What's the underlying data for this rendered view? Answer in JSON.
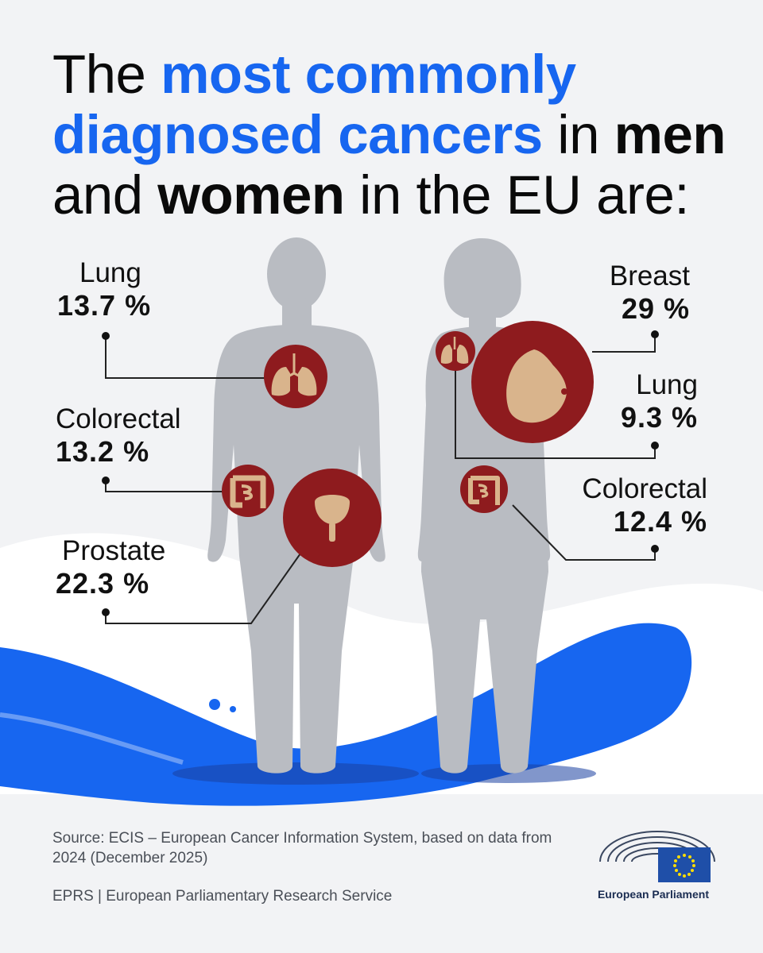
{
  "title": {
    "prefix": "The ",
    "highlight": "most commonly diagnosed cancers",
    "mid1": " in ",
    "men": "men",
    "mid2": " and ",
    "women": "women",
    "suffix": " in the EU are:"
  },
  "men": {
    "lung": {
      "name": "Lung",
      "value": "13.7 %"
    },
    "colorectal": {
      "name": "Colorectal",
      "value": "13.2 %"
    },
    "prostate": {
      "name": "Prostate",
      "value": "22.3 %"
    }
  },
  "women": {
    "breast": {
      "name": "Breast",
      "value": "29 %"
    },
    "lung": {
      "name": "Lung",
      "value": "9.3 %"
    },
    "colorectal": {
      "name": "Colorectal",
      "value": "12.4 %"
    }
  },
  "source": "Source: ECIS – European Cancer Information System, based on data from 2024 (December 2025)",
  "footer": "EPRS | European Parliamentary Research Service",
  "logo_text": "European Parliament",
  "colors": {
    "accent_blue": "#1766f0",
    "organ_red": "#8e1b1e",
    "organ_tan": "#d9b48c",
    "silhouette": "#b9bcc2",
    "background": "#f2f3f5"
  },
  "icons": [
    "lungs-icon",
    "intestine-icon",
    "prostate-icon",
    "breast-icon",
    "eu-flag-icon",
    "parliament-hemicycle-icon"
  ]
}
